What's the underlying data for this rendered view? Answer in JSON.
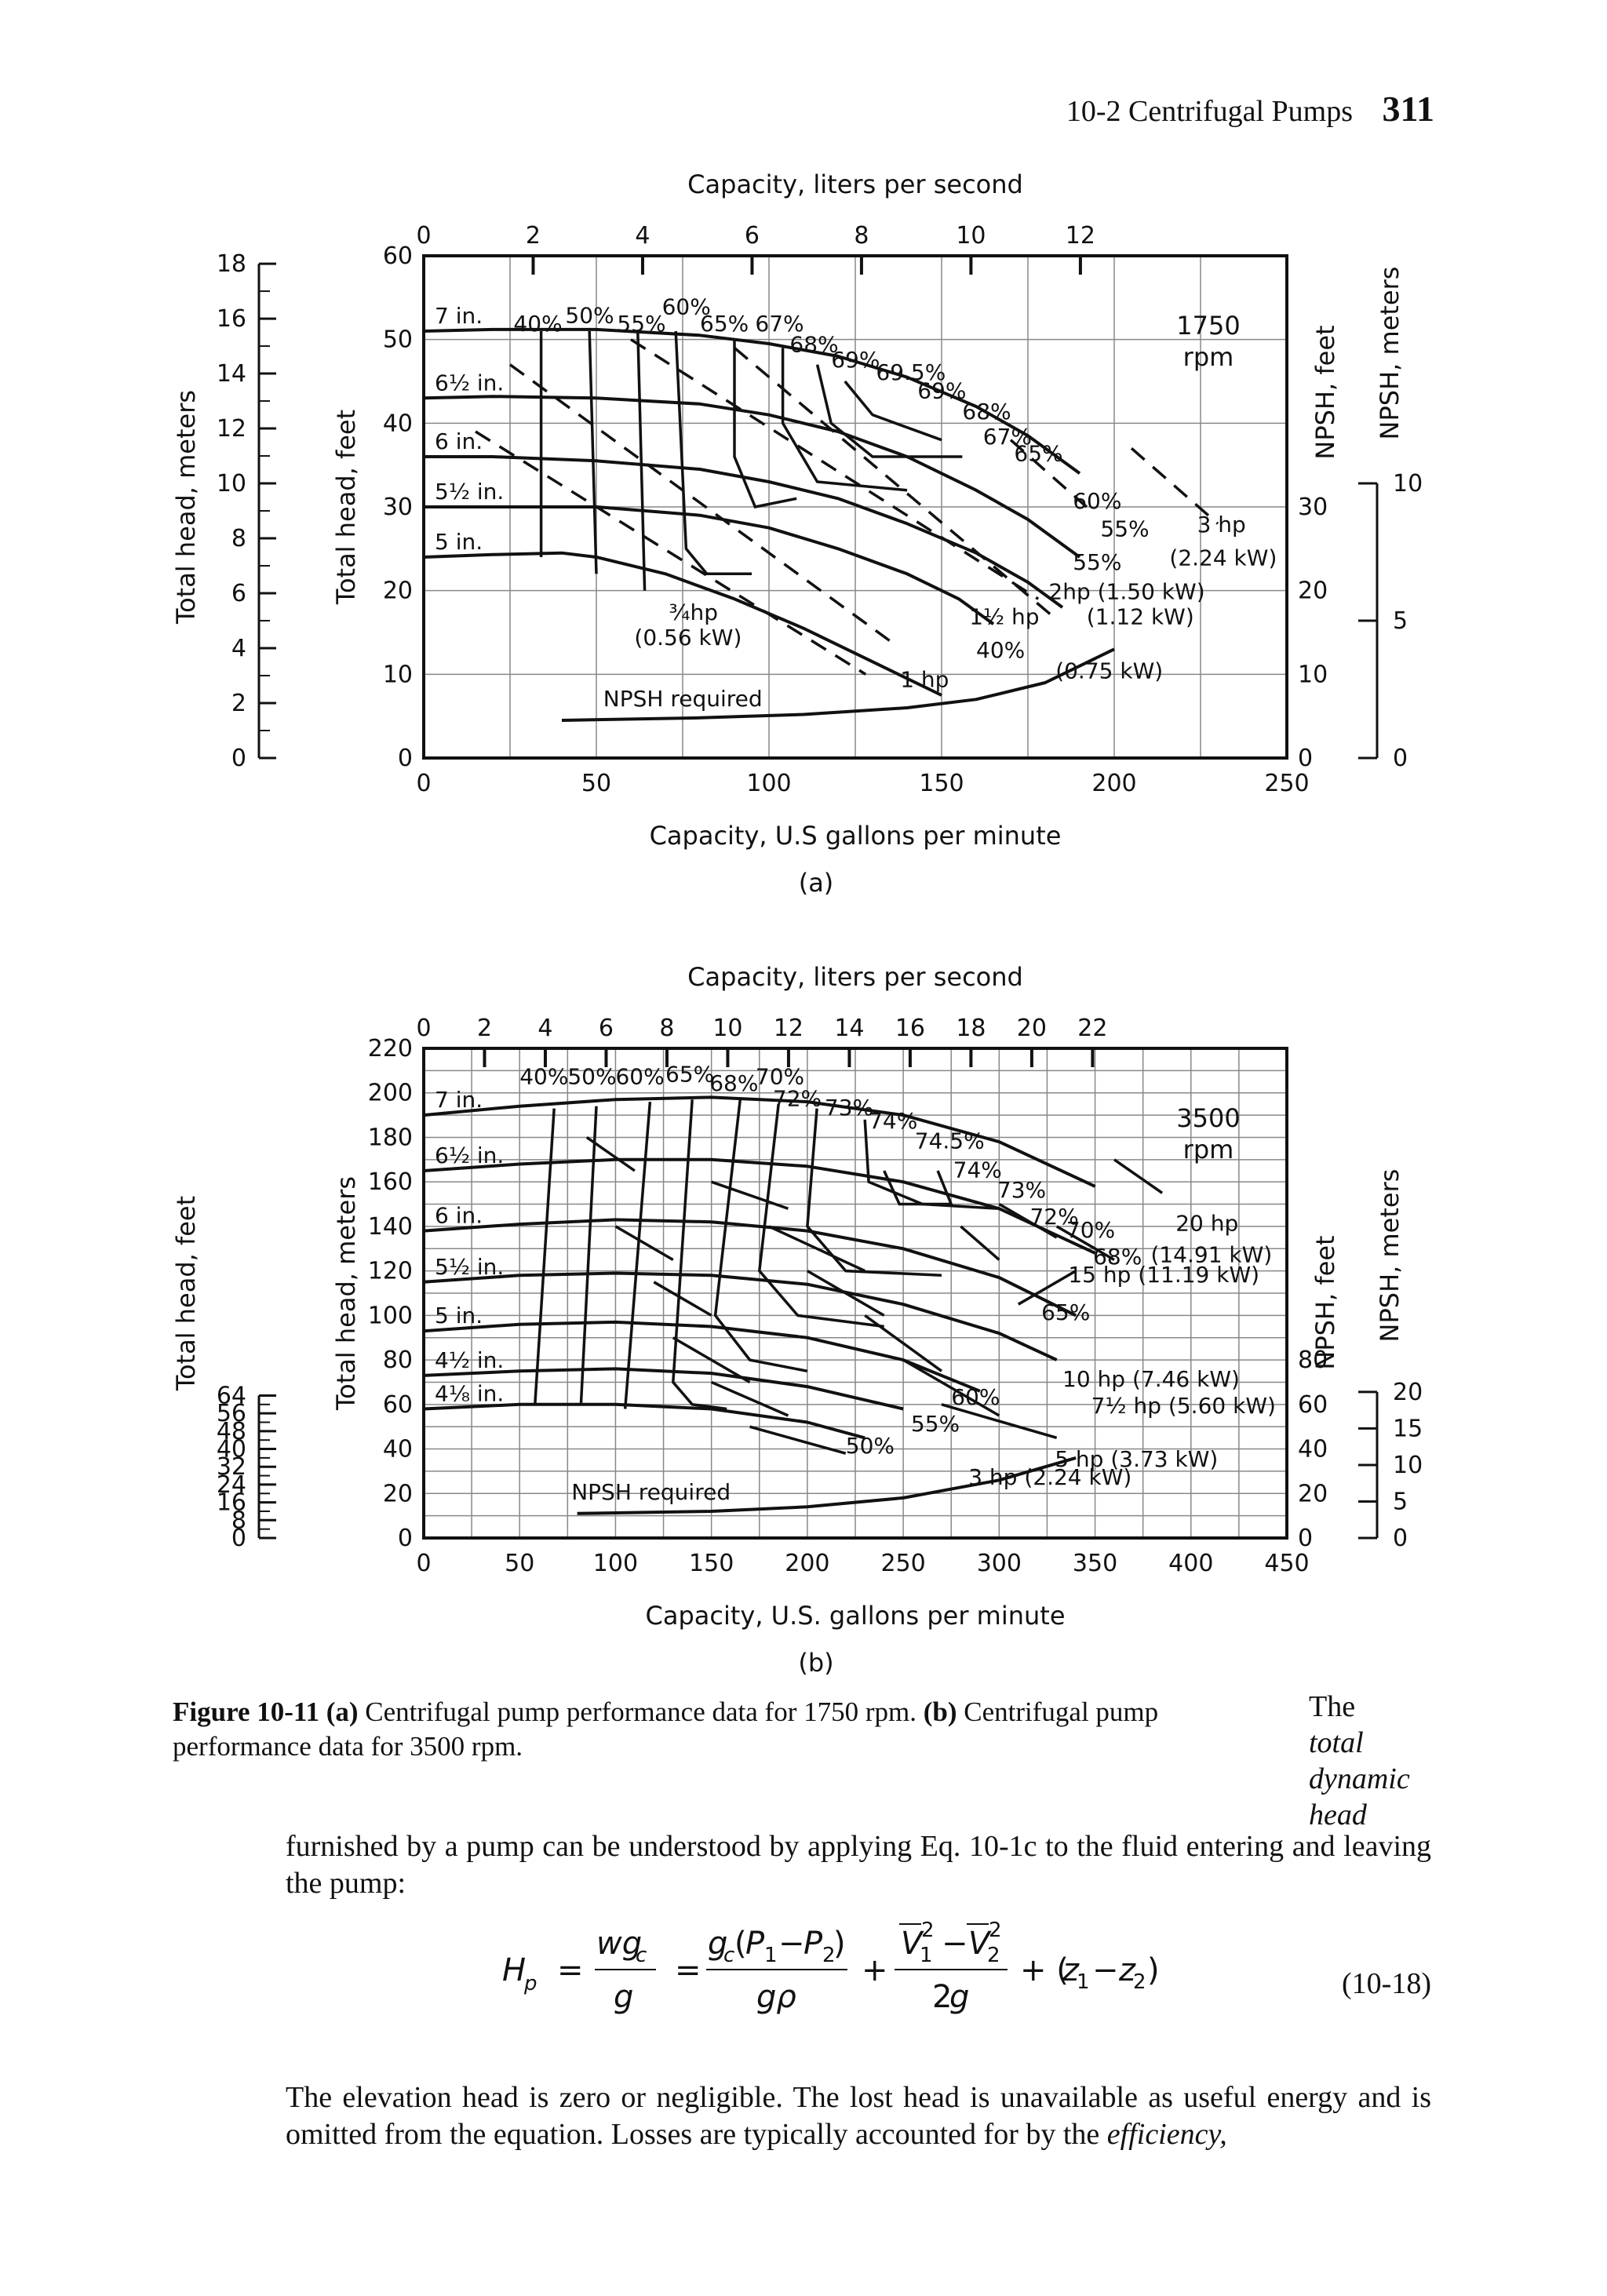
{
  "header": {
    "section": "10-2 Centrifugal Pumps",
    "page_number": "311"
  },
  "chart_data": [
    {
      "type": "line",
      "panel_label": "(a)",
      "speed_label": "1750",
      "speed_unit": "rpm",
      "xlabel": "Capacity, U.S gallons per minute",
      "x2label": "Capacity, liters per second",
      "ylabel": "Total head, feet",
      "y2label": "Total head, meters",
      "y3label": "NPSH, feet",
      "y4label": "NPSH, meters",
      "xlim": [
        0,
        250
      ],
      "ylim": [
        0,
        60
      ],
      "x_ticks": [
        "0",
        "50",
        "100",
        "150",
        "200",
        "250"
      ],
      "x2_ticks": [
        "0",
        "2",
        "4",
        "6",
        "8",
        "10",
        "12"
      ],
      "y_ticks": [
        "0",
        "10",
        "20",
        "30",
        "40",
        "50",
        "60"
      ],
      "y_m_ticks": [
        "0",
        "2",
        "4",
        "6",
        "8",
        "10",
        "12",
        "14",
        "16",
        "18"
      ],
      "npsh_ft_ticks": [
        "0",
        "10",
        "20",
        "30"
      ],
      "npsh_m_ticks": [
        "0",
        "5",
        "10"
      ],
      "series": [
        {
          "name": "7 in.",
          "x": [
            0,
            20,
            50,
            80,
            100,
            120,
            140,
            160,
            175,
            190
          ],
          "y": [
            51,
            51.2,
            51.2,
            50.5,
            49.5,
            48,
            45.5,
            42,
            38.5,
            34
          ]
        },
        {
          "name": "6½ in.",
          "x": [
            0,
            20,
            50,
            80,
            100,
            120,
            140,
            160,
            175,
            190
          ],
          "y": [
            43,
            43.2,
            43,
            42.3,
            41,
            39,
            36,
            32,
            28.5,
            24
          ]
        },
        {
          "name": "6 in.",
          "x": [
            0,
            20,
            50,
            80,
            100,
            120,
            140,
            160,
            175,
            185
          ],
          "y": [
            36,
            36,
            35.5,
            34.5,
            33,
            31,
            28,
            24.5,
            21,
            18
          ]
        },
        {
          "name": "5½ in.",
          "x": [
            0,
            20,
            50,
            80,
            100,
            120,
            140,
            155,
            165
          ],
          "y": [
            30,
            30,
            30,
            29,
            27.5,
            25,
            22,
            19,
            16
          ]
        },
        {
          "name": "5 in.",
          "x": [
            0,
            20,
            40,
            50,
            70,
            90,
            110,
            130,
            150
          ],
          "y": [
            24,
            24.3,
            24.5,
            24,
            22,
            19,
            15.5,
            11.5,
            7.5
          ]
        },
        {
          "name": "NPSH required",
          "x": [
            40,
            80,
            110,
            140,
            160,
            180,
            200
          ],
          "y": [
            4.5,
            4.8,
            5.2,
            6,
            7,
            9,
            13
          ]
        }
      ],
      "efficiency_labels": [
        "40%",
        "50%",
        "55%",
        "60%",
        "65%",
        "67%",
        "68%",
        "69%",
        "69.5%",
        "69%",
        "68%",
        "67%",
        "65%",
        "60%",
        "55%",
        "55%",
        "40%"
      ],
      "power_labels": [
        "3 hp",
        "(2.24 kW)",
        "2hp (1.50 kW)",
        "(1.12 kW)",
        "1½ hp",
        "¾hp",
        "(0.56 kW)",
        "1 hp",
        "(0.75 kW)"
      ]
    },
    {
      "type": "line",
      "panel_label": "(b)",
      "speed_label": "3500",
      "speed_unit": "rpm",
      "xlabel": "Capacity, U.S. gallons per minute",
      "x2label": "Capacity, liters per second",
      "ylabel": "Total head, meters",
      "y2label": "Total head, feet",
      "y3label": "NPSH, feet",
      "y4label": "NPSH, meters",
      "xlim": [
        0,
        450
      ],
      "ylim": [
        0,
        220
      ],
      "x_ticks": [
        "0",
        "50",
        "100",
        "150",
        "200",
        "250",
        "300",
        "350",
        "400",
        "450"
      ],
      "x2_ticks": [
        "0",
        "2",
        "4",
        "6",
        "8",
        "10",
        "12",
        "14",
        "16",
        "18",
        "20",
        "22"
      ],
      "y_ticks": [
        "0",
        "20",
        "40",
        "60",
        "80",
        "100",
        "120",
        "140",
        "160",
        "180",
        "200",
        "220"
      ],
      "y_ft_ticks": [
        "0",
        "8",
        "16",
        "24",
        "32",
        "40",
        "48",
        "56",
        "64"
      ],
      "npsh_ft_ticks": [
        "0",
        "20",
        "40",
        "60",
        "80"
      ],
      "npsh_m_ticks": [
        "0",
        "5",
        "10",
        "15",
        "20"
      ],
      "series": [
        {
          "name": "7 in.",
          "x": [
            0,
            50,
            100,
            150,
            200,
            250,
            300,
            350
          ],
          "y": [
            190,
            194,
            197,
            198,
            196,
            190,
            178,
            158
          ]
        },
        {
          "name": "6½ in.",
          "x": [
            0,
            50,
            100,
            150,
            200,
            250,
            300,
            350
          ],
          "y": [
            165,
            168,
            170,
            170,
            167,
            160,
            148,
            128
          ]
        },
        {
          "name": "6 in.",
          "x": [
            0,
            50,
            100,
            150,
            200,
            250,
            300,
            340
          ],
          "y": [
            138,
            141,
            143,
            142,
            138,
            130,
            117,
            100
          ]
        },
        {
          "name": "5½ in.",
          "x": [
            0,
            50,
            100,
            150,
            200,
            250,
            300,
            330
          ],
          "y": [
            115,
            118,
            119,
            118,
            114,
            105,
            92,
            80
          ]
        },
        {
          "name": "5 in.",
          "x": [
            0,
            50,
            100,
            150,
            200,
            250,
            290
          ],
          "y": [
            93,
            96,
            97,
            95,
            90,
            80,
            66
          ]
        },
        {
          "name": "4½ in.",
          "x": [
            0,
            50,
            100,
            150,
            200,
            250
          ],
          "y": [
            73,
            75,
            76,
            74,
            68,
            58
          ]
        },
        {
          "name": "4⅛ in.",
          "x": [
            0,
            50,
            100,
            150,
            200,
            230
          ],
          "y": [
            58,
            60,
            60,
            58,
            52,
            45
          ]
        },
        {
          "name": "NPSH required",
          "x": [
            80,
            150,
            200,
            250,
            300,
            340
          ],
          "y": [
            11,
            12,
            14,
            18,
            26,
            36
          ]
        }
      ],
      "efficiency_labels": [
        "40%",
        "50%",
        "60%",
        "65%",
        "68%",
        "70%",
        "72%",
        "73%",
        "74%",
        "74.5%",
        "74%",
        "73%",
        "72%",
        "70%",
        "68%",
        "65%",
        "60%",
        "55%",
        "50%"
      ],
      "power_labels": [
        "20 hp",
        "(14.91 kW)",
        "15 hp (11.19 kW)",
        "10 hp (7.46 kW)",
        "7½ hp (5.60 kW)",
        "5 hp (3.73 kW)",
        "3 hp (2.24 kW)"
      ]
    }
  ],
  "caption": {
    "figure_label": "Figure 10-11",
    "a_label": "(a)",
    "a_text": "Centrifugal pump performance data for 1750 rpm.",
    "b_label": "(b)",
    "b_text": "Centrifugal pump performance data for 3500 rpm."
  },
  "sidenote": {
    "lead": "The",
    "italic": [
      "total",
      "dynamic",
      "head"
    ]
  },
  "paragraph1": "furnished by a pump can be understood by applying Eq. 10-1c to the fluid entering and leaving the pump:",
  "equation": {
    "number": "(10-18)"
  },
  "paragraph2": "The elevation head is zero or negligible. The lost head is unavailable as useful energy and is omitted from the equation. Losses are typically accounted for by the efficiency,"
}
